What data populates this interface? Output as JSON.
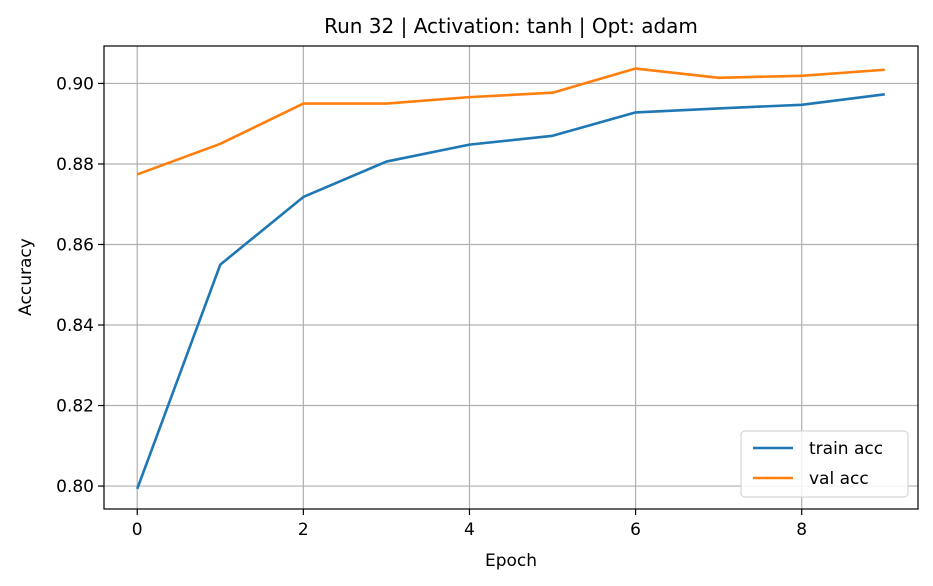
{
  "chart_data": {
    "type": "line",
    "title": "Run 32 | Activation: tanh | Opt: adam",
    "xlabel": "Epoch",
    "ylabel": "Accuracy",
    "x": [
      0,
      1,
      2,
      3,
      4,
      5,
      6,
      7,
      8,
      9
    ],
    "xlim": [
      -0.4,
      9.4
    ],
    "ylim": [
      0.7943,
      0.9093
    ],
    "xticks": [
      0,
      2,
      4,
      6,
      8
    ],
    "yticks": [
      0.8,
      0.82,
      0.84,
      0.86,
      0.88,
      0.9
    ],
    "ytick_labels": [
      "0.80",
      "0.82",
      "0.84",
      "0.86",
      "0.88",
      "0.90"
    ],
    "grid": true,
    "legend_position": "bottom-right",
    "series": [
      {
        "name": "train acc",
        "color": "#1f77b4",
        "values": [
          0.7993,
          0.855,
          0.8718,
          0.8806,
          0.8848,
          0.887,
          0.8928,
          0.8938,
          0.8947,
          0.8973
        ]
      },
      {
        "name": "val acc",
        "color": "#ff7f0e",
        "values": [
          0.8774,
          0.885,
          0.895,
          0.895,
          0.8966,
          0.8977,
          0.9037,
          0.9014,
          0.9019,
          0.9034
        ]
      }
    ]
  }
}
